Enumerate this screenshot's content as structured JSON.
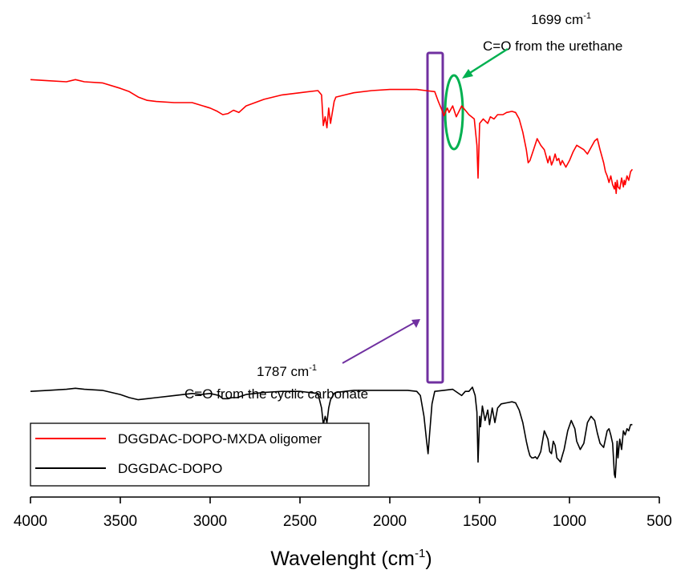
{
  "chart_data": {
    "type": "line",
    "title": "",
    "xlabel": "Wavelenght (cm",
    "xlabel_sup": "-1",
    "xlabel_suffix": ")",
    "ylabel": "",
    "x_reversed": true,
    "xlim": [
      4000,
      500
    ],
    "x_ticks": [
      4000,
      3500,
      3000,
      2500,
      2000,
      1500,
      1000,
      500
    ],
    "x_tick_labels": [
      "4000",
      "3500",
      "3000",
      "2500",
      "2000",
      "1500",
      "1000",
      "500"
    ],
    "y_axis_shown": false,
    "ylim": [
      0,
      100
    ],
    "grid": false,
    "legend_placement": "bottom-left",
    "series": [
      {
        "name": "DGGDAC-DOPO-MXDA oligomer",
        "color": "#ff0000",
        "x": [
          4000,
          3900,
          3800,
          3750,
          3700,
          3600,
          3500,
          3450,
          3400,
          3350,
          3300,
          3200,
          3100,
          3000,
          2960,
          2930,
          2900,
          2870,
          2840,
          2800,
          2700,
          2600,
          2500,
          2400,
          2380,
          2370,
          2360,
          2350,
          2340,
          2330,
          2310,
          2300,
          2250,
          2200,
          2100,
          2000,
          1900,
          1850,
          1800,
          1750,
          1730,
          1710,
          1699,
          1680,
          1670,
          1650,
          1630,
          1600,
          1580,
          1560,
          1530,
          1515,
          1509,
          1500,
          1480,
          1455,
          1440,
          1420,
          1400,
          1370,
          1350,
          1320,
          1300,
          1280,
          1260,
          1240,
          1230,
          1220,
          1200,
          1180,
          1160,
          1140,
          1120,
          1110,
          1100,
          1090,
          1080,
          1070,
          1060,
          1050,
          1040,
          1020,
          1000,
          980,
          960,
          940,
          920,
          900,
          880,
          860,
          845,
          830,
          810,
          800,
          790,
          780,
          770,
          760,
          750,
          745,
          740,
          735,
          730,
          720,
          710,
          700,
          695,
          690,
          680,
          670,
          660,
          650
        ],
        "y": [
          90,
          89.5,
          89,
          90,
          89,
          88.5,
          86,
          84.5,
          82,
          80.5,
          80,
          79.5,
          79.5,
          77,
          75.5,
          74,
          74.5,
          76,
          75,
          78,
          81,
          83,
          84,
          85,
          83,
          69,
          73,
          68,
          77,
          70,
          80,
          82,
          83,
          84,
          85,
          85.5,
          85.5,
          85.5,
          85,
          84.5,
          80,
          76,
          73.5,
          77,
          75,
          78,
          73,
          78,
          76,
          74,
          72,
          60,
          45,
          70,
          72,
          70,
          73,
          72,
          74,
          74,
          75,
          75.5,
          75,
          72,
          66,
          58,
          52,
          53,
          58,
          63,
          60,
          58,
          52,
          55,
          51,
          53,
          56,
          53,
          54,
          51,
          53,
          50,
          53,
          57,
          60,
          59,
          58,
          56,
          59,
          62,
          63,
          58,
          52,
          48,
          46,
          43,
          46,
          42,
          40,
          43,
          38,
          44,
          41,
          40,
          45,
          41,
          44,
          42,
          46,
          44,
          48,
          49
        ],
        "y_units_note": ""
      },
      {
        "name": "DGGDAC-DOPO",
        "color": "#000000",
        "x": [
          4000,
          3900,
          3800,
          3750,
          3700,
          3600,
          3500,
          3450,
          3400,
          3350,
          3300,
          3200,
          3100,
          3050,
          3000,
          2950,
          2930,
          2900,
          2880,
          2850,
          2800,
          2700,
          2600,
          2500,
          2400,
          2380,
          2370,
          2360,
          2350,
          2340,
          2330,
          2310,
          2300,
          2250,
          2200,
          2100,
          2000,
          1900,
          1850,
          1830,
          1810,
          1795,
          1787,
          1778,
          1765,
          1750,
          1700,
          1650,
          1600,
          1580,
          1560,
          1540,
          1525,
          1515,
          1509,
          1500,
          1495,
          1485,
          1470,
          1455,
          1445,
          1430,
          1415,
          1400,
          1380,
          1350,
          1320,
          1300,
          1280,
          1260,
          1240,
          1230,
          1220,
          1210,
          1200,
          1190,
          1180,
          1170,
          1160,
          1150,
          1140,
          1130,
          1120,
          1110,
          1100,
          1090,
          1080,
          1070,
          1060,
          1050,
          1040,
          1030,
          1010,
          990,
          970,
          960,
          940,
          920,
          900,
          880,
          860,
          845,
          830,
          810,
          800,
          790,
          780,
          770,
          760,
          750,
          745,
          740,
          735,
          730,
          720,
          710,
          700,
          690,
          680,
          670,
          660,
          650
        ],
        "y": [
          42,
          42.5,
          43,
          43.5,
          43,
          42.5,
          40.5,
          39,
          38,
          38.5,
          39,
          40,
          41,
          40.5,
          41,
          40,
          38.5,
          38.5,
          39,
          39,
          40.5,
          41.5,
          42,
          42,
          41,
          34,
          26,
          30,
          27,
          34,
          38,
          41,
          41.5,
          42,
          42.5,
          42.5,
          42.5,
          42.5,
          42,
          40,
          30,
          18,
          12,
          22,
          36,
          42,
          42.5,
          43,
          40,
          42,
          42,
          44,
          40,
          32,
          8,
          30,
          25,
          35,
          28,
          33,
          26,
          34,
          27,
          34,
          36,
          36.5,
          37,
          36.5,
          33,
          27,
          18,
          14,
          11,
          10,
          10,
          10.5,
          9.5,
          11,
          13,
          18,
          23,
          21,
          19,
          13,
          12,
          18,
          16,
          10,
          9,
          8,
          11,
          14,
          23,
          28,
          24,
          18,
          14,
          17,
          27,
          30,
          28,
          22,
          17,
          15,
          19,
          23,
          24,
          21,
          17,
          2,
          0.5,
          8,
          18,
          10,
          19,
          14,
          23,
          21,
          24,
          23,
          26,
          26
        ]
      }
    ],
    "annotations": [
      {
        "id": "urethane",
        "value_label": "1699 cm",
        "value_sup": "-1",
        "description": "C=O from the urethane",
        "color": "#00b050"
      },
      {
        "id": "carbonate",
        "value_label": "1787 cm",
        "value_sup": "-1",
        "description": "C=O from the cyclic carbonate",
        "color": "#7030a0"
      }
    ]
  }
}
